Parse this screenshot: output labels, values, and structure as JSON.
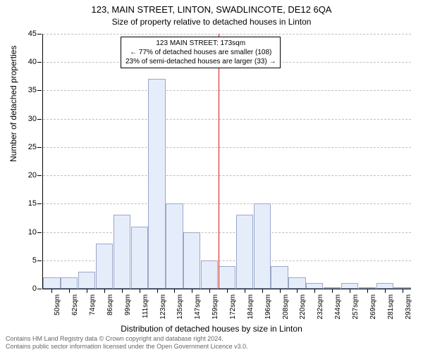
{
  "title": "123, MAIN STREET, LINTON, SWADLINCOTE, DE12 6QA",
  "subtitle": "Size of property relative to detached houses in Linton",
  "ylabel": "Number of detached properties",
  "xlabel": "Distribution of detached houses by size in Linton",
  "footer_line1": "Contains HM Land Registry data © Crown copyright and database right 2024.",
  "footer_line2": "Contains public sector information licensed under the Open Government Licence v3.0.",
  "chart": {
    "type": "histogram",
    "ymin": 0,
    "ymax": 45,
    "ytick_step": 5,
    "yticks": [
      0,
      5,
      10,
      15,
      20,
      25,
      30,
      35,
      40,
      45
    ],
    "grid_color": "#bfbfbf",
    "axis_color": "#000000",
    "bar_fill": "#e6edfa",
    "bar_border": "#9aa7c7",
    "background": "#ffffff",
    "categories": [
      "50sqm",
      "62sqm",
      "74sqm",
      "86sqm",
      "99sqm",
      "111sqm",
      "123sqm",
      "135sqm",
      "147sqm",
      "159sqm",
      "172sqm",
      "184sqm",
      "196sqm",
      "208sqm",
      "220sqm",
      "232sqm",
      "244sqm",
      "257sqm",
      "269sqm",
      "281sqm",
      "293sqm"
    ],
    "values": [
      2,
      2,
      3,
      8,
      13,
      11,
      37,
      15,
      10,
      5,
      4,
      13,
      15,
      4,
      2,
      1,
      0,
      1,
      0,
      1,
      0
    ],
    "refline_index": 10,
    "refline_color": "#d11919",
    "annotation": {
      "line1": "123 MAIN STREET: 173sqm",
      "line2": "← 77% of detached houses are smaller (108)",
      "line3": "23% of semi-detached houses are larger (33) →"
    },
    "label_fontsize": 11,
    "title_fontsize": 13
  }
}
